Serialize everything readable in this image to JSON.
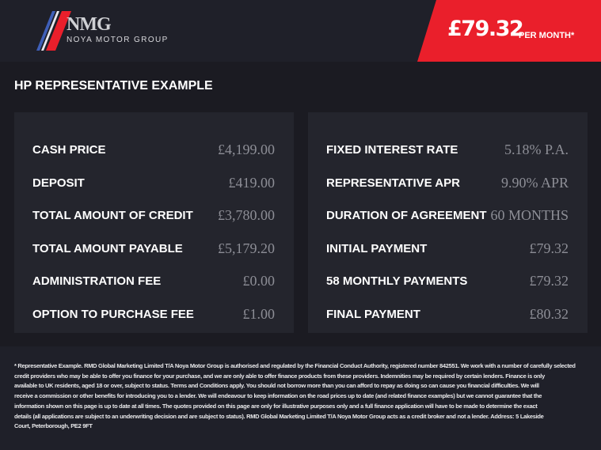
{
  "header": {
    "logo": {
      "mark": "NMG",
      "name": "NOYA MOTOR GROUP"
    },
    "price": {
      "amount": "£79.32",
      "label": "PER MONTH*"
    },
    "brand_color": "#ea1f2b"
  },
  "section_title": "HP REPRESENTATIVE EXAMPLE",
  "left_panel": [
    {
      "label": "CASH PRICE",
      "value": "£4,199.00"
    },
    {
      "label": "DEPOSIT",
      "value": "£419.00"
    },
    {
      "label": "TOTAL AMOUNT OF CREDIT",
      "value": "£3,780.00"
    },
    {
      "label": "TOTAL AMOUNT PAYABLE",
      "value": "£5,179.20"
    },
    {
      "label": "ADMINISTRATION FEE",
      "value": "£0.00"
    },
    {
      "label": "OPTION TO PURCHASE FEE",
      "value": "£1.00"
    }
  ],
  "right_panel": [
    {
      "label": "FIXED INTEREST RATE",
      "value": "5.18% P.A."
    },
    {
      "label": "REPRESENTATIVE APR",
      "value": "9.90% APR"
    },
    {
      "label": "DURATION OF AGREEMENT",
      "value": "60 MONTHS"
    },
    {
      "label": "INITIAL PAYMENT",
      "value": "£79.32"
    },
    {
      "label": "58 MONTHLY PAYMENTS",
      "value": "£79.32"
    },
    {
      "label": "FINAL PAYMENT",
      "value": "£80.32"
    }
  ],
  "footer": {
    "lines": [
      "* Representative Example. RMD Global Marketing Limited T/A Noya Motor Group is authorised and regulated by the Financial Conduct Authority, registered number 842551. We work with a number of carefully selected",
      "credit providers who may be able to offer you finance for your purchase, and we are only able to offer finance products from these providers. Indemnities may be required by certain lenders. Finance is only",
      "available to UK residents, aged 18 or over, subject to status. Terms and Conditions apply. You should not borrow more than you can afford to repay as doing so can cause you financial difficulties. We will",
      "receive a commission or other benefits for introducing you to a lender. We will endeavour to keep information on the road prices up to date (and related finance examples) but we cannot guarantee that the",
      "information shown on this page is up to date at all times. The quotes provided on this page are only for illustrative purposes only and a full finance application will have to be made to determine the exact",
      "details (all applications are subject to an underwriting decision and are subject to status). RMD Global Marketing Limited T/A Noya Motor Group acts as a credit broker and not a lender. Address: 5 Lakeside",
      "Court, Peterborough, PE2 9FT"
    ]
  }
}
